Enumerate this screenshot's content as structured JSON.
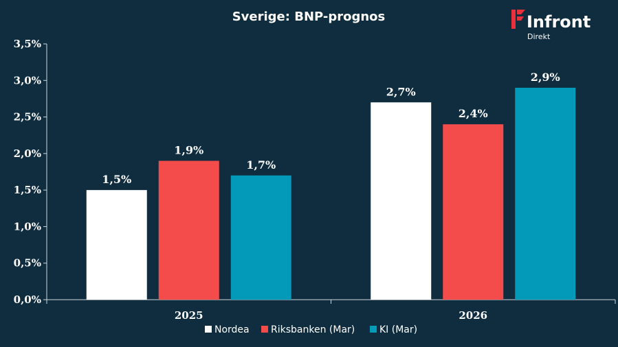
{
  "colors": {
    "background": "#0f2d3e",
    "nordea": "#ffffff",
    "riksbanken": "#f44b4b",
    "ki": "#0399b8",
    "logo_red": "#e8313b"
  },
  "logo": {
    "name": "Infront",
    "sub": "Direkt"
  },
  "chart_data": {
    "type": "bar",
    "title": "Sverige:  BNP-prognos",
    "categories": [
      "2025",
      "2026"
    ],
    "series": [
      {
        "name": "Nordea",
        "values": [
          1.5,
          2.7
        ],
        "labels": [
          "1,5%",
          "2,7%"
        ]
      },
      {
        "name": "Riksbanken (Mar)",
        "values": [
          1.9,
          2.4
        ],
        "labels": [
          "1,9%",
          "2,4%"
        ]
      },
      {
        "name": "KI (Mar)",
        "values": [
          1.7,
          2.9
        ],
        "labels": [
          "1,7%",
          "2,9%"
        ]
      }
    ],
    "ylim": [
      0,
      3.5
    ],
    "yticks": [
      "0,0%",
      "0,5%",
      "1,0%",
      "1,5%",
      "2,0%",
      "2,5%",
      "3,0%",
      "3,5%"
    ],
    "xlabel": "",
    "ylabel": "",
    "grid": false,
    "legend_position": "bottom"
  }
}
